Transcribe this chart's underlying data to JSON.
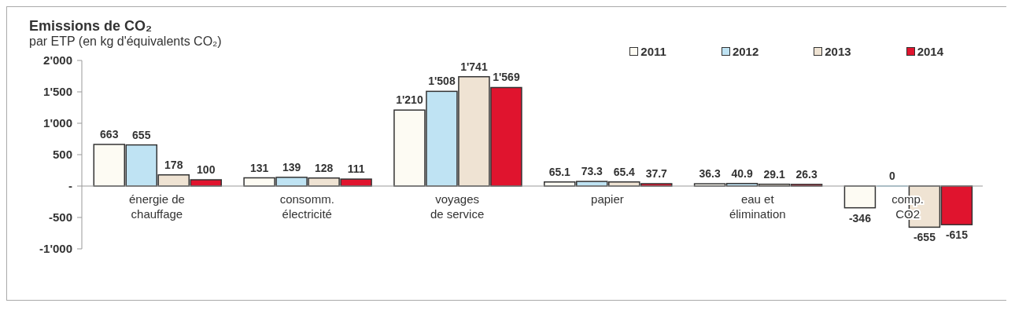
{
  "chart_data": {
    "type": "bar",
    "title": "Emissions de CO₂",
    "subtitle": "par ETP (en kg d'équivalents CO₂)",
    "categories": [
      "énergie de\nchauffage",
      "consomm.\nélectricité",
      "voyages\nde service",
      "papier",
      "eau et\nélimination",
      "comp.\nCO2"
    ],
    "series": [
      {
        "name": "2011",
        "color": "#fdfbf3",
        "values": [
          663,
          131,
          1210,
          65.1,
          36.3,
          -346
        ],
        "value_labels": [
          "663",
          "131",
          "1'210",
          "65.1",
          "36.3",
          "-346"
        ]
      },
      {
        "name": "2012",
        "color": "#bfe3f3",
        "values": [
          655,
          139,
          1508,
          73.3,
          40.9,
          0
        ],
        "value_labels": [
          "655",
          "139",
          "1'508",
          "73.3",
          "40.9",
          "0"
        ]
      },
      {
        "name": "2013",
        "color": "#efe3d3",
        "values": [
          178,
          128,
          1741,
          65.4,
          29.1,
          -655
        ],
        "value_labels": [
          "178",
          "128",
          "1'741",
          "65.4",
          "29.1",
          "-655"
        ]
      },
      {
        "name": "2014",
        "color": "#e0142e",
        "values": [
          100,
          111,
          1569,
          37.7,
          26.3,
          -615
        ],
        "value_labels": [
          "100",
          "111",
          "1'569",
          "37.7",
          "26.3",
          "-615"
        ]
      }
    ],
    "ylim": [
      -1000,
      2000
    ],
    "yticks": [
      {
        "value": -1000,
        "label": "-1'000"
      },
      -500,
      {
        "value": 0,
        "label": "-"
      },
      500,
      {
        "value": 1000,
        "label": "1'000"
      },
      {
        "value": 1500,
        "label": "1'500"
      },
      {
        "value": 2000,
        "label": "2'000"
      }
    ],
    "grid": false,
    "legend": "top right"
  }
}
